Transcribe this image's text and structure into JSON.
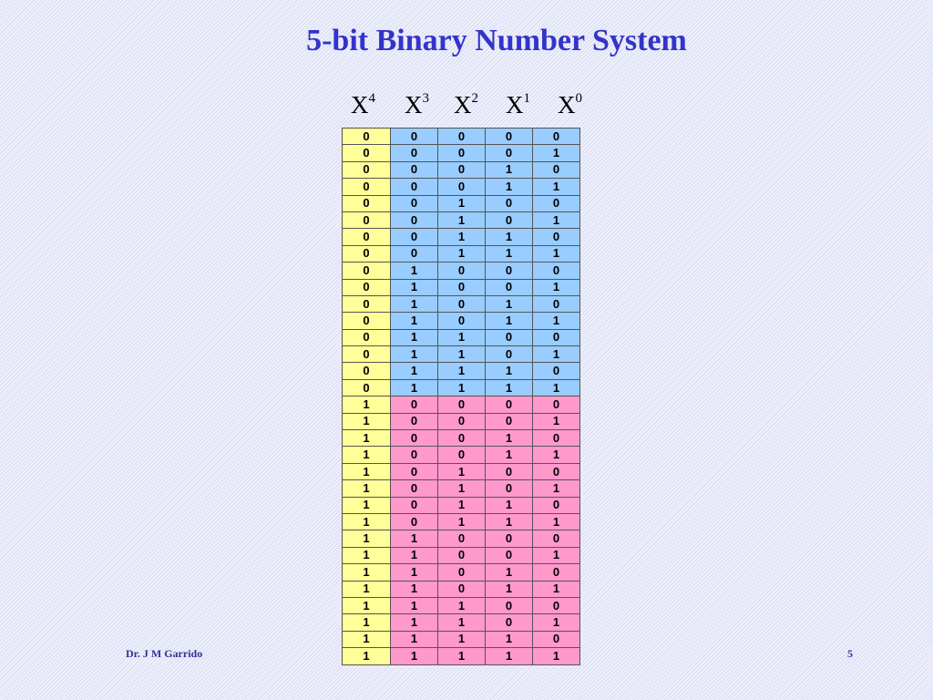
{
  "title": "5-bit Binary Number System",
  "headers": [
    {
      "base": "X",
      "exp": "4"
    },
    {
      "base": "X",
      "exp": "3"
    },
    {
      "base": "X",
      "exp": "2"
    },
    {
      "base": "X",
      "exp": "1"
    },
    {
      "base": "X",
      "exp": "0"
    }
  ],
  "colors": {
    "msb_column": "#ffff99",
    "msb0_rows": "#99ccff",
    "msb1_rows": "#ff99cc",
    "title": "#3333cc"
  },
  "rows": [
    [
      "0",
      "0",
      "0",
      "0",
      "0"
    ],
    [
      "0",
      "0",
      "0",
      "0",
      "1"
    ],
    [
      "0",
      "0",
      "0",
      "1",
      "0"
    ],
    [
      "0",
      "0",
      "0",
      "1",
      "1"
    ],
    [
      "0",
      "0",
      "1",
      "0",
      "0"
    ],
    [
      "0",
      "0",
      "1",
      "0",
      "1"
    ],
    [
      "0",
      "0",
      "1",
      "1",
      "0"
    ],
    [
      "0",
      "0",
      "1",
      "1",
      "1"
    ],
    [
      "0",
      "1",
      "0",
      "0",
      "0"
    ],
    [
      "0",
      "1",
      "0",
      "0",
      "1"
    ],
    [
      "0",
      "1",
      "0",
      "1",
      "0"
    ],
    [
      "0",
      "1",
      "0",
      "1",
      "1"
    ],
    [
      "0",
      "1",
      "1",
      "0",
      "0"
    ],
    [
      "0",
      "1",
      "1",
      "0",
      "1"
    ],
    [
      "0",
      "1",
      "1",
      "1",
      "0"
    ],
    [
      "0",
      "1",
      "1",
      "1",
      "1"
    ],
    [
      "1",
      "0",
      "0",
      "0",
      "0"
    ],
    [
      "1",
      "0",
      "0",
      "0",
      "1"
    ],
    [
      "1",
      "0",
      "0",
      "1",
      "0"
    ],
    [
      "1",
      "0",
      "0",
      "1",
      "1"
    ],
    [
      "1",
      "0",
      "1",
      "0",
      "0"
    ],
    [
      "1",
      "0",
      "1",
      "0",
      "1"
    ],
    [
      "1",
      "0",
      "1",
      "1",
      "0"
    ],
    [
      "1",
      "0",
      "1",
      "1",
      "1"
    ],
    [
      "1",
      "1",
      "0",
      "0",
      "0"
    ],
    [
      "1",
      "1",
      "0",
      "0",
      "1"
    ],
    [
      "1",
      "1",
      "0",
      "1",
      "0"
    ],
    [
      "1",
      "1",
      "0",
      "1",
      "1"
    ],
    [
      "1",
      "1",
      "1",
      "0",
      "0"
    ],
    [
      "1",
      "1",
      "1",
      "0",
      "1"
    ],
    [
      "1",
      "1",
      "1",
      "1",
      "0"
    ],
    [
      "1",
      "1",
      "1",
      "1",
      "1"
    ]
  ],
  "footer": {
    "author": "Dr. J M Garrido",
    "page": "5"
  }
}
